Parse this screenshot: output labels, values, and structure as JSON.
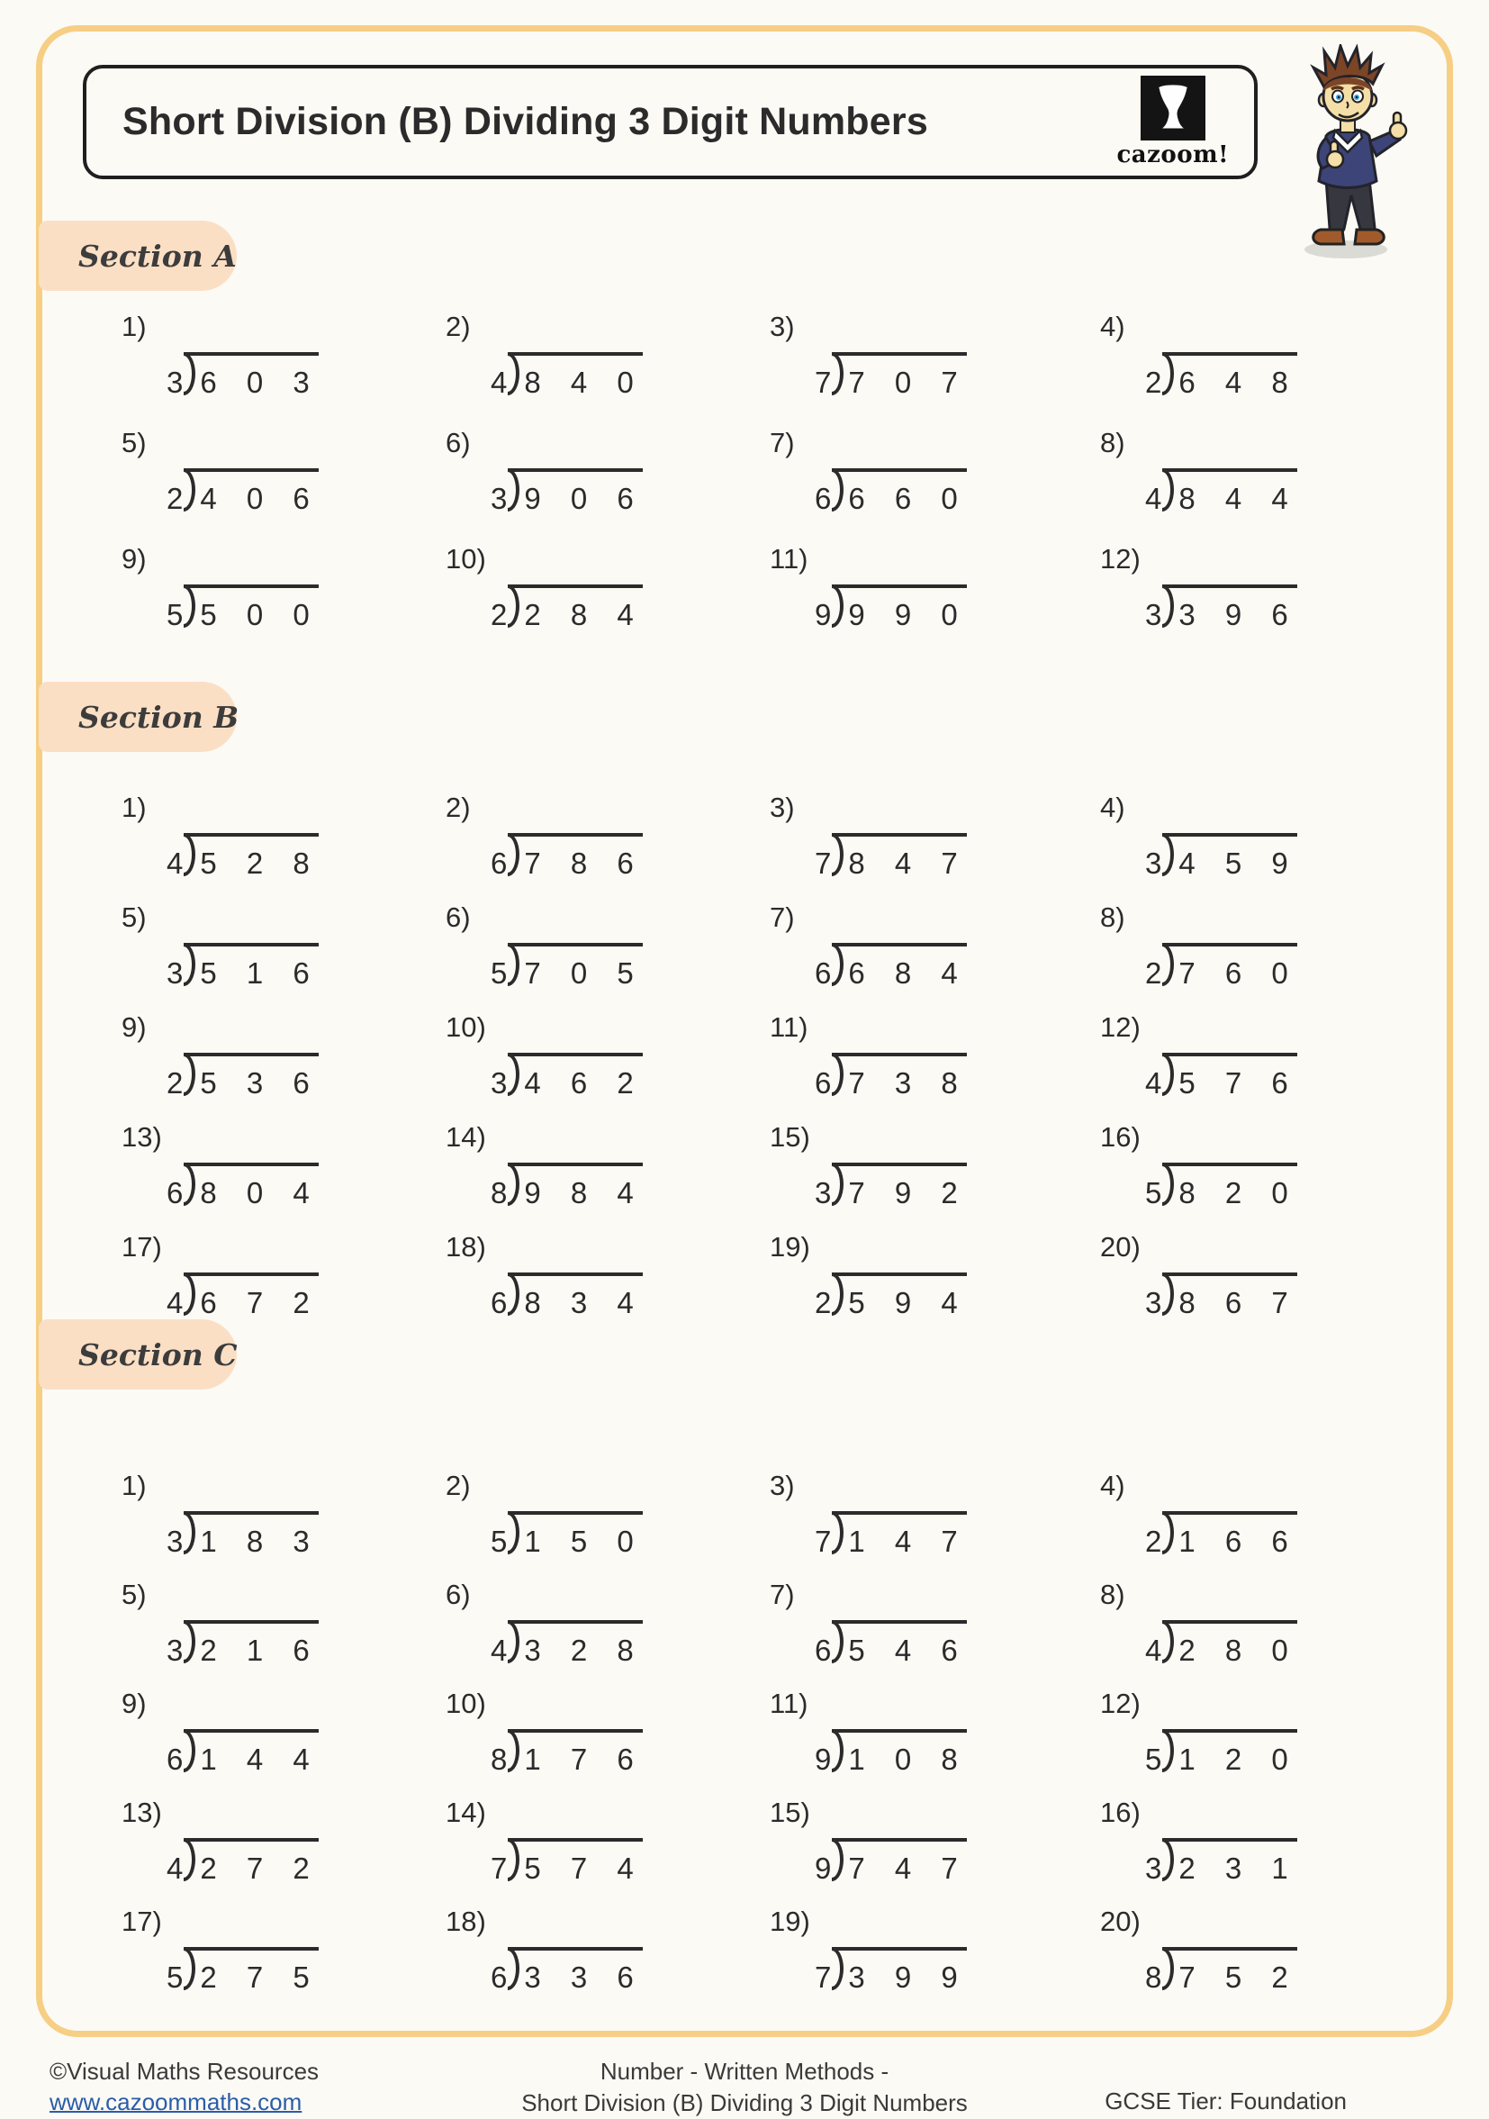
{
  "header": {
    "title": "Short Division (B) Dividing 3 Digit Numbers",
    "logo_text": "cazoom!"
  },
  "sections": [
    {
      "label": "Section A",
      "problems": [
        {
          "n": "1)",
          "divisor": "3",
          "dividend": "6 0 3"
        },
        {
          "n": "2)",
          "divisor": "4",
          "dividend": "8 4 0"
        },
        {
          "n": "3)",
          "divisor": "7",
          "dividend": "7 0 7"
        },
        {
          "n": "4)",
          "divisor": "2",
          "dividend": "6 4 8"
        },
        {
          "n": "5)",
          "divisor": "2",
          "dividend": "4 0 6"
        },
        {
          "n": "6)",
          "divisor": "3",
          "dividend": "9 0 6"
        },
        {
          "n": "7)",
          "divisor": "6",
          "dividend": "6 6 0"
        },
        {
          "n": "8)",
          "divisor": "4",
          "dividend": "8 4 4"
        },
        {
          "n": "9)",
          "divisor": "5",
          "dividend": "5 0 0"
        },
        {
          "n": "10)",
          "divisor": "2",
          "dividend": "2 8 4"
        },
        {
          "n": "11)",
          "divisor": "9",
          "dividend": "9 9 0"
        },
        {
          "n": "12)",
          "divisor": "3",
          "dividend": "3 9 6"
        }
      ]
    },
    {
      "label": "Section B",
      "problems": [
        {
          "n": "1)",
          "divisor": "4",
          "dividend": "5 2 8"
        },
        {
          "n": "2)",
          "divisor": "6",
          "dividend": "7 8 6"
        },
        {
          "n": "3)",
          "divisor": "7",
          "dividend": "8 4 7"
        },
        {
          "n": "4)",
          "divisor": "3",
          "dividend": "4 5 9"
        },
        {
          "n": "5)",
          "divisor": "3",
          "dividend": "5 1 6"
        },
        {
          "n": "6)",
          "divisor": "5",
          "dividend": "7 0 5"
        },
        {
          "n": "7)",
          "divisor": "6",
          "dividend": "6 8 4"
        },
        {
          "n": "8)",
          "divisor": "2",
          "dividend": "7 6 0"
        },
        {
          "n": "9)",
          "divisor": "2",
          "dividend": "5 3 6"
        },
        {
          "n": "10)",
          "divisor": "3",
          "dividend": "4 6 2"
        },
        {
          "n": "11)",
          "divisor": "6",
          "dividend": "7 3 8"
        },
        {
          "n": "12)",
          "divisor": "4",
          "dividend": "5 7 6"
        },
        {
          "n": "13)",
          "divisor": "6",
          "dividend": "8 0 4"
        },
        {
          "n": "14)",
          "divisor": "8",
          "dividend": "9 8 4"
        },
        {
          "n": "15)",
          "divisor": "3",
          "dividend": "7 9 2"
        },
        {
          "n": "16)",
          "divisor": "5",
          "dividend": "8 2 0"
        },
        {
          "n": "17)",
          "divisor": "4",
          "dividend": "6 7 2"
        },
        {
          "n": "18)",
          "divisor": "6",
          "dividend": "8 3 4"
        },
        {
          "n": "19)",
          "divisor": "2",
          "dividend": "5 9 4"
        },
        {
          "n": "20)",
          "divisor": "3",
          "dividend": "8 6 7"
        }
      ]
    },
    {
      "label": "Section C",
      "problems": [
        {
          "n": "1)",
          "divisor": "3",
          "dividend": "1 8 3"
        },
        {
          "n": "2)",
          "divisor": "5",
          "dividend": "1 5 0"
        },
        {
          "n": "3)",
          "divisor": "7",
          "dividend": "1 4 7"
        },
        {
          "n": "4)",
          "divisor": "2",
          "dividend": "1 6 6"
        },
        {
          "n": "5)",
          "divisor": "3",
          "dividend": "2 1 6"
        },
        {
          "n": "6)",
          "divisor": "4",
          "dividend": "3 2 8"
        },
        {
          "n": "7)",
          "divisor": "6",
          "dividend": "5 4 6"
        },
        {
          "n": "8)",
          "divisor": "4",
          "dividend": "2 8 0"
        },
        {
          "n": "9)",
          "divisor": "6",
          "dividend": "1 4 4"
        },
        {
          "n": "10)",
          "divisor": "8",
          "dividend": "1 7 6"
        },
        {
          "n": "11)",
          "divisor": "9",
          "dividend": "1 0 8"
        },
        {
          "n": "12)",
          "divisor": "5",
          "dividend": "1 2 0"
        },
        {
          "n": "13)",
          "divisor": "4",
          "dividend": "2 7 2"
        },
        {
          "n": "14)",
          "divisor": "7",
          "dividend": "5 7 4"
        },
        {
          "n": "15)",
          "divisor": "9",
          "dividend": "7 4 7"
        },
        {
          "n": "16)",
          "divisor": "3",
          "dividend": "2 3 1"
        },
        {
          "n": "17)",
          "divisor": "5",
          "dividend": "2 7 5"
        },
        {
          "n": "18)",
          "divisor": "6",
          "dividend": "3 3 6"
        },
        {
          "n": "19)",
          "divisor": "7",
          "dividend": "3 9 9"
        },
        {
          "n": "20)",
          "divisor": "8",
          "dividend": "7 5 2"
        }
      ]
    }
  ],
  "footer": {
    "left_line1": "©Visual Maths Resources",
    "left_line2": "www.cazoommaths.com",
    "center_line1": "Number - Written Methods -",
    "center_line2": "Short Division (B) Dividing 3 Digit Numbers",
    "right": "GCSE Tier: Foundation"
  },
  "colors": {
    "page": "#FCFAF5",
    "border": "#F6CE84",
    "pill": "#FBDFC5",
    "ink": "#2B2B2B",
    "link": "#2A5DA8"
  }
}
